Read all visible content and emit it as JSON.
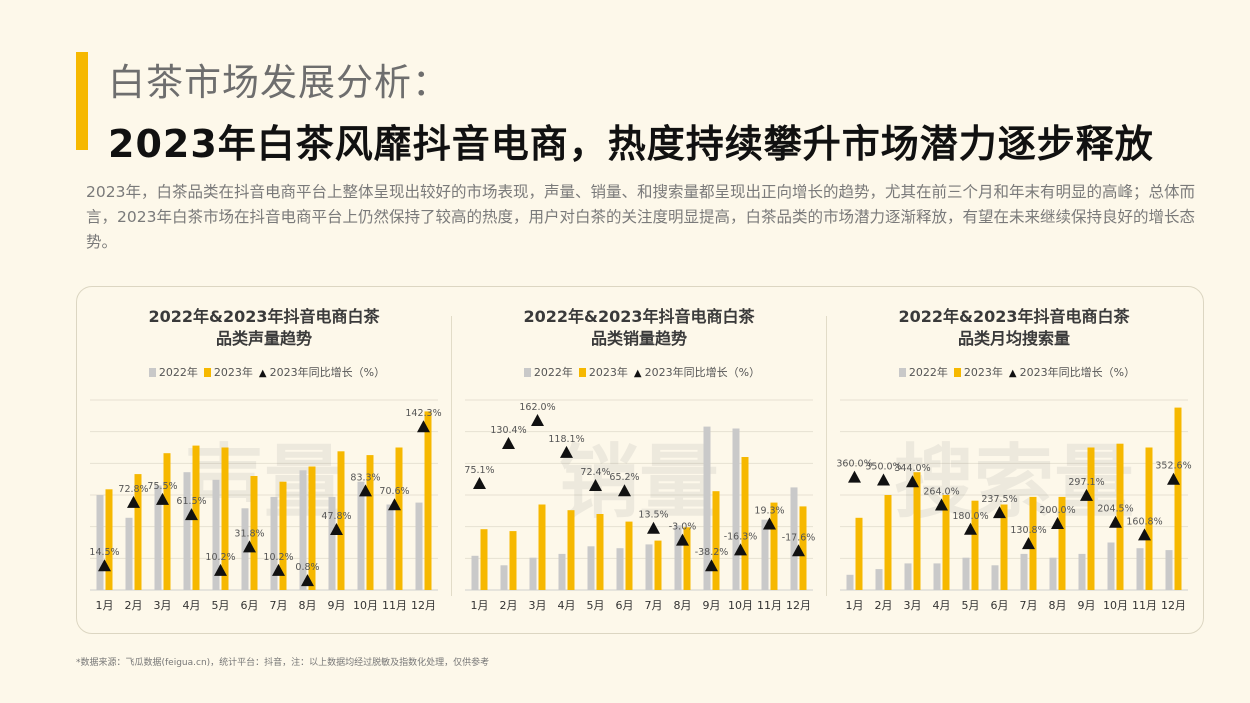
{
  "header": {
    "section_title": "白茶市场发展分析：",
    "main_title": "2023年白茶风靡抖音电商，热度持续攀升市场潜力逐步释放",
    "intro": "2023年，白茶品类在抖音电商平台上整体呈现出较好的市场表现，声量、销量、和搜索量都呈现出正向增长的趋势，尤其在前三个月和年末有明显的高峰；总体而言，2023年白茶市场在抖音电商平台上仍然保持了较高的热度，用户对白茶的关注度明显提高，白茶品类的市场潜力逐渐释放，有望在未来继续保持良好的增长态势。"
  },
  "legend": {
    "y2022": "2022年",
    "y2023": "2023年",
    "growth": "2023年同比增长（%）"
  },
  "colors": {
    "accent": "#f6b800",
    "bar2022": "#c9c9c9",
    "bar2023": "#f6b800",
    "marker": "#111111",
    "background": "#fdf8ea"
  },
  "footnote": "*数据来源：飞瓜数据(feigua.cn)，统计平台：抖音，注：以上数据均经过脱敏及指数化处理，仅供参考",
  "chart_data": [
    {
      "type": "bar",
      "title_line1": "2022年&2023年抖音电商白茶",
      "title_line2": "品类声量趋势",
      "watermark": "声量",
      "categories": [
        "1月",
        "2月",
        "3月",
        "4月",
        "5月",
        "6月",
        "7月",
        "8月",
        "9月",
        "10月",
        "11月",
        "12月"
      ],
      "series": [
        {
          "name": "2022年",
          "values": [
            50,
            38,
            55,
            62,
            58,
            43,
            49,
            63,
            49,
            57,
            45,
            46
          ]
        },
        {
          "name": "2023年",
          "values": [
            53,
            61,
            72,
            76,
            75,
            60,
            57,
            65,
            73,
            71,
            75,
            94
          ]
        }
      ],
      "growth": {
        "name": "2023年同比增长（%）",
        "values": [
          14.5,
          72.8,
          75.5,
          61.5,
          10.2,
          31.8,
          10.2,
          0.8,
          47.8,
          83.3,
          70.6,
          142.3
        ],
        "labels": [
          "14.5%",
          "72.8%",
          "75.5%",
          "61.5%",
          "10.2%",
          "31.8%",
          "10.2%",
          "0.8%",
          "47.8%",
          "83.3%",
          "70.6%",
          "142.3%"
        ],
        "range": [
          0,
          160
        ]
      },
      "ylim": [
        0,
        100
      ],
      "grid": true
    },
    {
      "type": "bar",
      "title_line1": "2022年&2023年抖音电商白茶",
      "title_line2": "品类销量趋势",
      "watermark": "销量",
      "categories": [
        "1月",
        "2月",
        "3月",
        "4月",
        "5月",
        "6月",
        "7月",
        "8月",
        "9月",
        "10月",
        "11月",
        "12月"
      ],
      "series": [
        {
          "name": "2022年",
          "values": [
            18,
            13,
            17,
            19,
            23,
            22,
            24,
            34,
            86,
            85,
            37,
            54
          ]
        },
        {
          "name": "2023年",
          "values": [
            32,
            31,
            45,
            42,
            40,
            36,
            26,
            33,
            52,
            70,
            46,
            44
          ]
        }
      ],
      "growth": {
        "name": "2023年同比增长（%）",
        "values": [
          75.1,
          130.4,
          162.0,
          118.1,
          72.4,
          65.2,
          13.5,
          -3.0,
          -38.2,
          -16.3,
          19.3,
          -17.6
        ],
        "labels": [
          "75.1%",
          "130.4%",
          "162.0%",
          "118.1%",
          "72.4%",
          "65.2%",
          "13.5%",
          "-3.0%",
          "-38.2%",
          "-16.3%",
          "19.3%",
          "-17.6%"
        ],
        "range": [
          -60,
          180
        ]
      },
      "ylim": [
        0,
        100
      ],
      "grid": true
    },
    {
      "type": "bar",
      "title_line1": "2022年&2023年抖音电商白茶",
      "title_line2": "品类月均搜索量",
      "watermark": "搜索量",
      "categories": [
        "1月",
        "2月",
        "3月",
        "4月",
        "5月",
        "6月",
        "7月",
        "8月",
        "9月",
        "10月",
        "11月",
        "12月"
      ],
      "series": [
        {
          "name": "2022年",
          "values": [
            8,
            11,
            14,
            14,
            17,
            13,
            19,
            17,
            19,
            25,
            22,
            21
          ]
        },
        {
          "name": "2023年",
          "values": [
            38,
            50,
            62,
            50,
            47,
            45,
            49,
            49,
            75,
            77,
            75,
            96
          ]
        }
      ],
      "growth": {
        "name": "2023年同比增长（%）",
        "values": [
          360.0,
          350.0,
          344.0,
          264.0,
          180.0,
          237.5,
          130.8,
          200.0,
          297.1,
          204.5,
          160.8,
          352.6
        ],
        "labels": [
          "360.0%",
          "350.0%",
          "344.0%",
          "264.0%",
          "180.0%",
          "237.5%",
          "130.8%",
          "200.0%",
          "297.1%",
          "204.5%",
          "160.8%",
          "352.6%"
        ],
        "range": [
          0,
          600
        ]
      },
      "ylim": [
        0,
        100
      ],
      "grid": true
    }
  ]
}
